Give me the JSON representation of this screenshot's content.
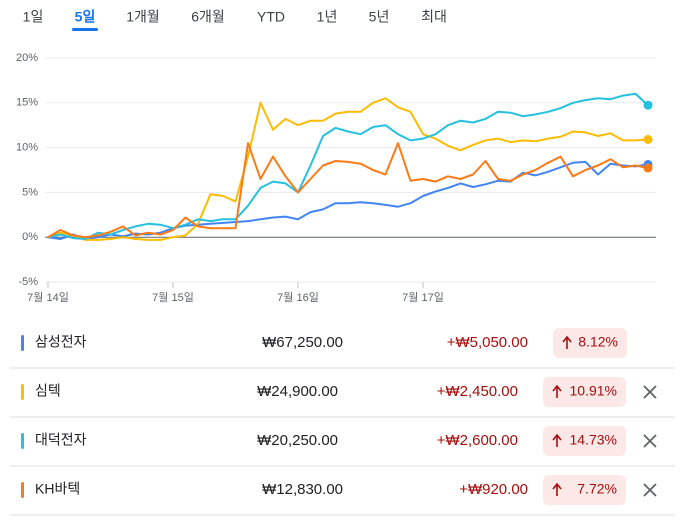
{
  "tabs": {
    "items": [
      "1일",
      "5일",
      "1개월",
      "6개월",
      "YTD",
      "1년",
      "5년",
      "최대"
    ],
    "selected_index": 1
  },
  "chart_data": {
    "type": "line",
    "x": [
      0,
      0.1,
      0.2,
      0.3,
      0.4,
      0.5,
      0.6,
      0.7,
      0.8,
      0.9,
      1,
      1.1,
      1.2,
      1.3,
      1.4,
      1.5,
      1.6,
      1.7,
      1.8,
      1.9,
      2,
      2.1,
      2.2,
      2.3,
      2.4,
      2.5,
      2.6,
      2.7,
      2.8,
      2.9,
      3,
      3.1,
      3.2,
      3.3,
      3.4,
      3.5,
      3.6,
      3.7,
      3.8,
      3.9,
      4,
      4.1,
      4.2,
      4.3,
      4.4,
      4.5,
      4.6,
      4.7,
      4.8
    ],
    "xlim": [
      0,
      4.85
    ],
    "xticks": [
      {
        "value": 0,
        "label": "7월 14일"
      },
      {
        "value": 1,
        "label": "7월 15일"
      },
      {
        "value": 2,
        "label": "7월 16일"
      },
      {
        "value": 3,
        "label": "7월 17일"
      }
    ],
    "ylim": [
      -5,
      20
    ],
    "yticks": [
      {
        "value": -5,
        "label": "-5%"
      },
      {
        "value": 0,
        "label": "0%"
      },
      {
        "value": 5,
        "label": "5%"
      },
      {
        "value": 10,
        "label": "10%"
      },
      {
        "value": 15,
        "label": "15%"
      },
      {
        "value": 20,
        "label": "20%"
      }
    ],
    "grid": true,
    "series": [
      {
        "name": "삼성전자",
        "color": "#4285f4",
        "values": [
          0,
          -0.2,
          0.3,
          -0.2,
          0,
          0.3,
          0.1,
          0.4,
          0.3,
          0.5,
          1.0,
          1.3,
          1.4,
          1.5,
          1.6,
          1.7,
          1.8,
          2.0,
          2.2,
          2.3,
          2.0,
          2.8,
          3.1,
          3.8,
          3.8,
          3.9,
          3.8,
          3.6,
          3.4,
          3.8,
          4.6,
          5.1,
          5.5,
          6.0,
          5.6,
          5.9,
          6.3,
          6.2,
          7.2,
          6.9,
          7.3,
          7.8,
          8.3,
          8.4,
          7.0,
          8.2,
          8.0,
          7.9,
          8.12
        ]
      },
      {
        "name": "심텍",
        "color": "#fbbc04",
        "values": [
          0,
          0.5,
          0.2,
          -0.3,
          -0.3,
          -0.2,
          0,
          -0.2,
          -0.3,
          -0.3,
          0,
          0.2,
          1.5,
          4.8,
          4.6,
          4.0,
          9.0,
          15.0,
          12.0,
          13.2,
          12.5,
          13.0,
          13.0,
          13.8,
          14.0,
          14.0,
          15.0,
          15.5,
          14.5,
          14.0,
          11.5,
          11.0,
          10.2,
          9.7,
          10.3,
          10.8,
          11.0,
          10.6,
          10.8,
          10.7,
          11.0,
          11.2,
          11.8,
          11.7,
          11.3,
          11.6,
          10.8,
          10.8,
          10.91
        ]
      },
      {
        "name": "대덕전자",
        "color": "#24c1e0",
        "values": [
          0,
          0.3,
          -0.1,
          -0.2,
          0.5,
          0.3,
          0.8,
          1.2,
          1.5,
          1.4,
          1.0,
          1.4,
          2.0,
          1.8,
          2.0,
          2.0,
          3.5,
          5.5,
          6.2,
          6.0,
          5.0,
          8.0,
          11.3,
          12.2,
          11.8,
          11.5,
          12.3,
          12.5,
          11.5,
          10.8,
          11.0,
          11.5,
          12.5,
          13.0,
          12.8,
          13.2,
          14.0,
          13.9,
          13.5,
          13.7,
          14.0,
          14.4,
          15.0,
          15.3,
          15.5,
          15.4,
          15.8,
          16.0,
          14.73
        ]
      },
      {
        "name": "KH바텍",
        "color": "#fa7b17",
        "values": [
          0,
          0.8,
          0.2,
          0,
          0.2,
          0.6,
          1.2,
          0.2,
          0.5,
          0.3,
          0.8,
          2.2,
          1.2,
          1.0,
          1.0,
          1.0,
          10.5,
          6.5,
          9.0,
          6.8,
          5.0,
          6.5,
          8.0,
          8.5,
          8.4,
          8.2,
          7.5,
          7.0,
          10.5,
          6.3,
          6.5,
          6.2,
          6.8,
          6.5,
          7.0,
          8.5,
          6.5,
          6.3,
          7.0,
          7.5,
          8.3,
          9.0,
          6.8,
          7.5,
          8.0,
          8.7,
          7.8,
          8.0,
          7.72
        ]
      }
    ]
  },
  "table": {
    "rows": [
      {
        "name": "삼성전자",
        "price": "₩67,250.00",
        "change": "+₩5,050.00",
        "percent": "8.12%",
        "removable": false
      },
      {
        "name": "심텍",
        "price": "₩24,900.00",
        "change": "+₩2,450.00",
        "percent": "10.91%",
        "removable": true
      },
      {
        "name": "대덕전자",
        "price": "₩20,250.00",
        "change": "+₩2,600.00",
        "percent": "14.73%",
        "removable": true
      },
      {
        "name": "KH바텍",
        "price": "₩12,830.00",
        "change": "+₩920.00",
        "percent": "7.72%",
        "removable": true
      }
    ]
  }
}
